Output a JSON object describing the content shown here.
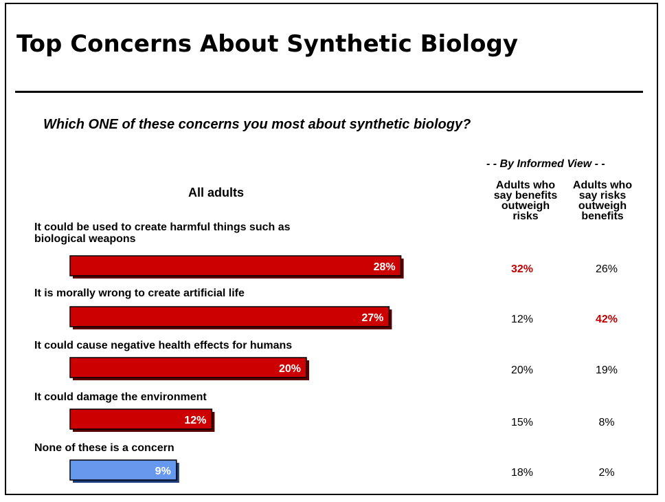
{
  "slide": {
    "title": "Top Concerns About Synthetic Biology",
    "question": "Which ONE of these concerns you most about synthetic biology?",
    "group_header": "- - By Informed View - -",
    "all_adults_label": "All adults",
    "col1_header": "Adults who\nsay benefits\noutweigh\nrisks",
    "col2_header": "Adults who\nsay risks\noutweigh\nbenefits"
  },
  "chart_data": {
    "type": "bar",
    "orientation": "horizontal",
    "categories": [
      "It could be used to create harmful things such as\nbiological weapons",
      "It is morally wrong to create artificial life",
      "It could cause negative health effects for humans",
      "It could damage the environment",
      "None of these is a concern"
    ],
    "series": [
      {
        "name": "All adults",
        "values": [
          28,
          27,
          20,
          12,
          9
        ],
        "labels": [
          "28%",
          "27%",
          "20%",
          "12%",
          "9%"
        ]
      }
    ],
    "bar_colors": [
      "#cc0000",
      "#cc0000",
      "#cc0000",
      "#cc0000",
      "#6699ee"
    ],
    "table_columns": [
      {
        "name": "Adults who say benefits outweigh risks",
        "values": [
          "32%",
          "12%",
          "20%",
          "15%",
          "18%"
        ],
        "highlight": [
          true,
          false,
          false,
          false,
          false
        ]
      },
      {
        "name": "Adults who say risks outweigh benefits",
        "values": [
          "26%",
          "42%",
          "19%",
          "8%",
          "2%"
        ],
        "highlight": [
          false,
          true,
          false,
          false,
          false
        ]
      }
    ],
    "highlight_color": "#c00000"
  }
}
